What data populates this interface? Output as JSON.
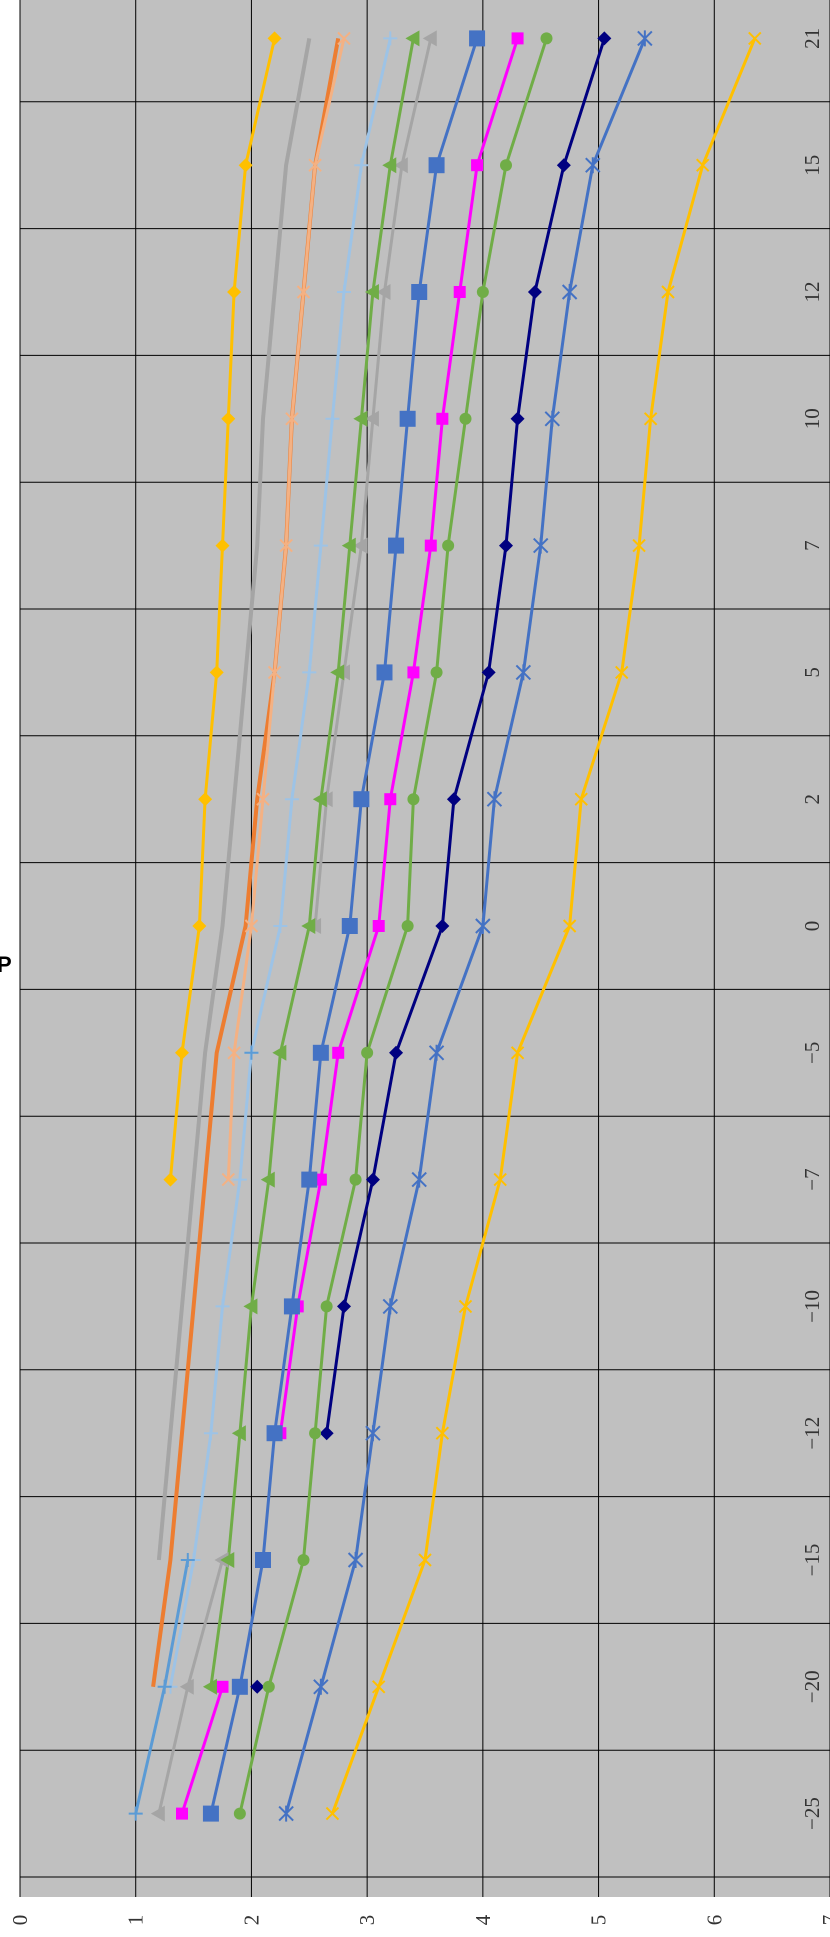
{
  "stray_label": "P",
  "chart_data": {
    "type": "line",
    "orientation": "rotated-90-clockwise",
    "x_tick_labels": [
      "−25",
      "−20",
      "−15",
      "−12",
      "−10",
      "−7",
      "−5",
      "0",
      "2",
      "5",
      "7",
      "10",
      "12",
      "15",
      "21"
    ],
    "y_tick_labels": [
      "0",
      "1",
      "2",
      "3",
      "4",
      "5",
      "6",
      "7"
    ],
    "ylim": [
      0,
      7
    ],
    "grid": true,
    "plot_background": "#c0c0c0",
    "series": [
      {
        "color": "#ffc000",
        "marker": "x",
        "values": [
          2.7,
          3.1,
          3.5,
          3.65,
          3.85,
          4.15,
          4.3,
          4.75,
          4.85,
          5.2,
          5.35,
          5.45,
          5.6,
          5.9,
          6.35
        ]
      },
      {
        "color": "#4472c4",
        "marker": "asterisk",
        "values": [
          2.3,
          2.6,
          2.9,
          3.05,
          3.2,
          3.45,
          3.6,
          4.0,
          4.1,
          4.35,
          4.5,
          4.6,
          4.75,
          4.95,
          5.4
        ]
      },
      {
        "color": "#000080",
        "marker": "diamond",
        "values": [
          null,
          2.05,
          null,
          2.65,
          2.8,
          3.05,
          3.25,
          3.65,
          3.75,
          4.05,
          4.2,
          4.3,
          4.45,
          4.7,
          5.05
        ]
      },
      {
        "color": "#70ad47",
        "marker": "circle",
        "values": [
          1.9,
          2.15,
          2.45,
          2.55,
          2.65,
          2.9,
          3.0,
          3.35,
          3.4,
          3.6,
          3.7,
          3.85,
          4.0,
          4.2,
          4.55
        ]
      },
      {
        "color": "#ff00ff",
        "marker": "square",
        "values": [
          1.4,
          1.75,
          null,
          2.25,
          2.4,
          2.6,
          2.75,
          3.1,
          3.2,
          3.4,
          3.55,
          3.65,
          3.8,
          3.95,
          4.3
        ]
      },
      {
        "color": "#4472c4",
        "marker": "big-square",
        "values": [
          1.65,
          1.9,
          2.1,
          2.2,
          2.35,
          2.5,
          2.6,
          2.85,
          2.95,
          3.15,
          3.25,
          3.35,
          3.45,
          3.6,
          3.95
        ]
      },
      {
        "color": "#a5a5a5",
        "marker": "triangle",
        "values": [
          1.2,
          1.45,
          1.75,
          null,
          null,
          null,
          null,
          2.55,
          2.65,
          2.8,
          2.95,
          3.05,
          3.15,
          3.3,
          3.55
        ]
      },
      {
        "color": "#70ad47",
        "marker": "triangle",
        "values": [
          null,
          1.65,
          1.8,
          1.9,
          2.0,
          2.15,
          2.25,
          2.5,
          2.6,
          2.75,
          2.85,
          2.95,
          3.05,
          3.2,
          3.4
        ]
      },
      {
        "color": "#9dc3e6",
        "marker": "plus",
        "values": [
          null,
          1.3,
          1.5,
          1.65,
          1.75,
          1.9,
          2.0,
          2.25,
          2.35,
          2.5,
          2.6,
          2.7,
          2.8,
          2.95,
          3.2
        ]
      },
      {
        "color": "#5b9bd5",
        "marker": "plus",
        "values": [
          1.0,
          1.25,
          1.45,
          null,
          null,
          null,
          2.0,
          null,
          null,
          null,
          null,
          null,
          null,
          null,
          null
        ]
      },
      {
        "color": "#ed7d31",
        "marker": "none",
        "values": [
          null,
          1.15,
          1.3,
          1.4,
          1.5,
          1.6,
          1.7,
          1.95,
          2.05,
          2.2,
          2.3,
          2.35,
          2.45,
          2.55,
          2.75
        ]
      },
      {
        "color": "#f4b183",
        "marker": "x",
        "values": [
          null,
          null,
          null,
          null,
          null,
          1.8,
          1.85,
          2.0,
          2.1,
          2.2,
          2.3,
          2.35,
          2.45,
          2.55,
          2.8
        ]
      },
      {
        "color": "#a5a5a5",
        "marker": "none",
        "values": [
          null,
          null,
          1.2,
          1.3,
          1.4,
          1.5,
          1.6,
          1.75,
          1.85,
          1.95,
          2.05,
          2.1,
          2.2,
          2.3,
          2.5
        ]
      },
      {
        "color": "#ffc000",
        "marker": "diamond",
        "values": [
          null,
          null,
          null,
          null,
          null,
          1.3,
          1.4,
          1.55,
          1.6,
          1.7,
          1.75,
          1.8,
          1.85,
          1.95,
          2.2
        ]
      }
    ]
  }
}
